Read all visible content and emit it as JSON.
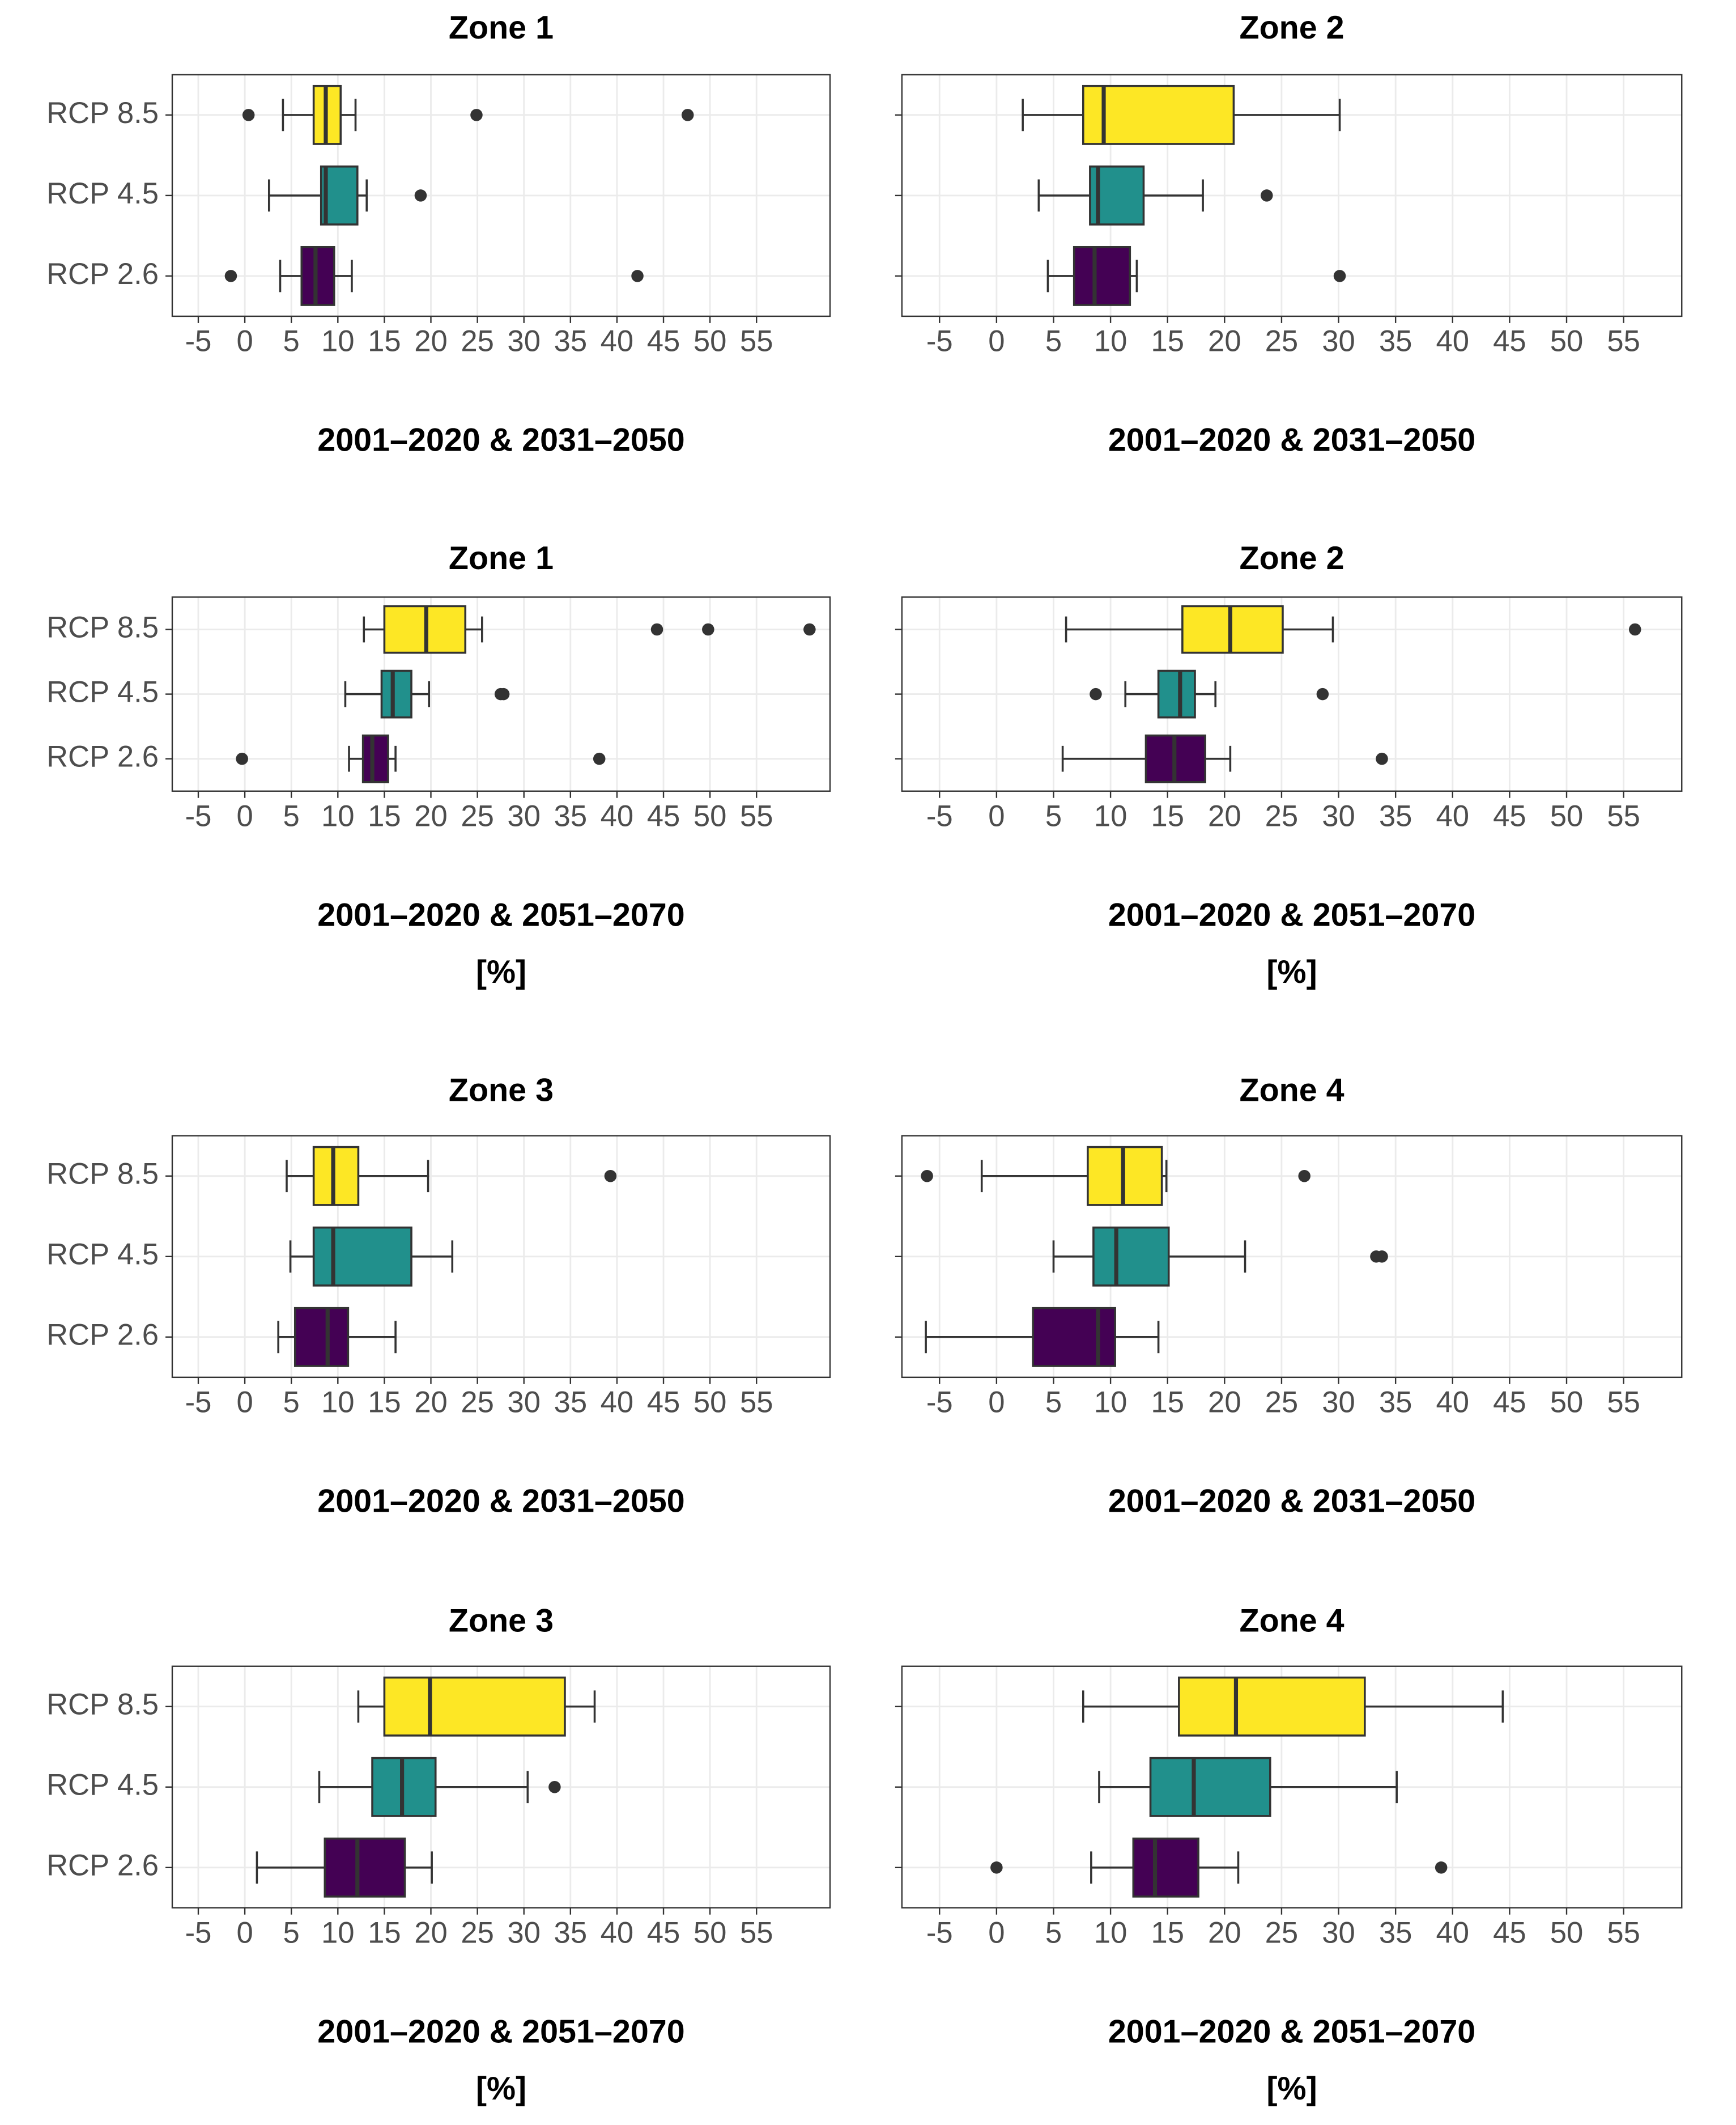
{
  "chart_data": [
    {
      "type": "box",
      "title": "Zone 1",
      "xlabel": [
        "2001–2020 & 2031–2050"
      ],
      "categories": [
        "RCP 8.5",
        "RCP 4.5",
        "RCP 2.6"
      ],
      "xlim": [
        -7.8,
        62.9
      ],
      "xticks": [
        -5,
        0,
        5,
        10,
        15,
        20,
        25,
        30,
        35,
        40,
        45,
        50,
        55
      ],
      "grid": true,
      "boxes": [
        {
          "color": "#fde725",
          "whisker_low": 4.1,
          "q1": 7.4,
          "median": 8.7,
          "q3": 10.3,
          "whisker_high": 11.9,
          "outliers": [
            0.4,
            24.9,
            47.6
          ]
        },
        {
          "color": "#21908c",
          "whisker_low": 2.6,
          "q1": 8.2,
          "median": 8.7,
          "q3": 12.1,
          "whisker_high": 13.1,
          "outliers": [
            18.9
          ]
        },
        {
          "color": "#440154",
          "whisker_low": 3.8,
          "q1": 6.1,
          "median": 7.6,
          "q3": 9.6,
          "whisker_high": 11.5,
          "outliers": [
            -1.5,
            42.2
          ]
        }
      ]
    },
    {
      "type": "box",
      "title": "Zone 2",
      "xlabel": [
        "2001–2020 & 2031–2050"
      ],
      "categories": [
        null,
        null,
        null
      ],
      "xlim": [
        -8.3,
        60.1
      ],
      "xticks": [
        -5,
        0,
        5,
        10,
        15,
        20,
        25,
        30,
        35,
        40,
        45,
        50,
        55
      ],
      "grid": true,
      "boxes": [
        {
          "color": "#fde725",
          "whisker_low": 2.3,
          "q1": 7.6,
          "median": 9.4,
          "q3": 20.8,
          "whisker_high": 30.1,
          "outliers": []
        },
        {
          "color": "#21908c",
          "whisker_low": 3.7,
          "q1": 8.2,
          "median": 8.9,
          "q3": 12.9,
          "whisker_high": 18.1,
          "outliers": [
            23.7
          ]
        },
        {
          "color": "#440154",
          "whisker_low": 4.5,
          "q1": 6.8,
          "median": 8.6,
          "q3": 11.7,
          "whisker_high": 12.3,
          "outliers": [
            30.1
          ]
        }
      ]
    },
    {
      "type": "box",
      "title": "Zone 1",
      "xlabel": [
        "2001–2020 & 2051–2070",
        "[%]"
      ],
      "categories": [
        "RCP 8.5",
        "RCP 4.5",
        "RCP 2.6"
      ],
      "xlim": [
        -7.8,
        62.9
      ],
      "xticks": [
        -5,
        0,
        5,
        10,
        15,
        20,
        25,
        30,
        35,
        40,
        45,
        50,
        55
      ],
      "grid": true,
      "boxes": [
        {
          "color": "#fde725",
          "whisker_low": 12.8,
          "q1": 15.0,
          "median": 19.5,
          "q3": 23.7,
          "whisker_high": 25.5,
          "outliers": [
            44.3,
            49.8,
            60.7
          ]
        },
        {
          "color": "#21908c",
          "whisker_low": 10.8,
          "q1": 14.7,
          "median": 15.9,
          "q3": 17.9,
          "whisker_high": 19.8,
          "outliers": [
            27.5,
            27.8
          ]
        },
        {
          "color": "#440154",
          "whisker_low": 11.2,
          "q1": 12.7,
          "median": 13.7,
          "q3": 15.4,
          "whisker_high": 16.2,
          "outliers": [
            -0.3,
            38.1
          ]
        }
      ]
    },
    {
      "type": "box",
      "title": "Zone 2",
      "xlabel": [
        "2001–2020 & 2051–2070",
        "[%]"
      ],
      "categories": [
        null,
        null,
        null
      ],
      "xlim": [
        -8.3,
        60.1
      ],
      "xticks": [
        -5,
        0,
        5,
        10,
        15,
        20,
        25,
        30,
        35,
        40,
        45,
        50,
        55
      ],
      "grid": true,
      "boxes": [
        {
          "color": "#fde725",
          "whisker_low": 6.1,
          "q1": 16.3,
          "median": 20.5,
          "q3": 25.1,
          "whisker_high": 29.5,
          "outliers": [
            56.0
          ]
        },
        {
          "color": "#21908c",
          "whisker_low": 11.3,
          "q1": 14.2,
          "median": 16.1,
          "q3": 17.4,
          "whisker_high": 19.2,
          "outliers": [
            8.7,
            28.6
          ]
        },
        {
          "color": "#440154",
          "whisker_low": 5.8,
          "q1": 13.1,
          "median": 15.6,
          "q3": 18.3,
          "whisker_high": 20.5,
          "outliers": [
            33.8
          ]
        }
      ]
    },
    {
      "type": "box",
      "title": "Zone 3",
      "xlabel": [
        "2001–2020 & 2031–2050"
      ],
      "categories": [
        "RCP 8.5",
        "RCP 4.5",
        "RCP 2.6"
      ],
      "xlim": [
        -7.8,
        62.9
      ],
      "xticks": [
        -5,
        0,
        5,
        10,
        15,
        20,
        25,
        30,
        35,
        40,
        45,
        50,
        55
      ],
      "grid": true,
      "boxes": [
        {
          "color": "#fde725",
          "whisker_low": 4.5,
          "q1": 7.4,
          "median": 9.5,
          "q3": 12.2,
          "whisker_high": 19.7,
          "outliers": [
            39.3
          ]
        },
        {
          "color": "#21908c",
          "whisker_low": 4.9,
          "q1": 7.4,
          "median": 9.5,
          "q3": 17.9,
          "whisker_high": 22.3,
          "outliers": []
        },
        {
          "color": "#440154",
          "whisker_low": 3.6,
          "q1": 5.4,
          "median": 8.9,
          "q3": 11.1,
          "whisker_high": 16.2,
          "outliers": []
        }
      ]
    },
    {
      "type": "box",
      "title": "Zone 4",
      "xlabel": [
        "2001–2020 & 2031–2050"
      ],
      "categories": [
        null,
        null,
        null
      ],
      "xlim": [
        -8.3,
        60.1
      ],
      "xticks": [
        -5,
        0,
        5,
        10,
        15,
        20,
        25,
        30,
        35,
        40,
        45,
        50,
        55
      ],
      "grid": true,
      "boxes": [
        {
          "color": "#fde725",
          "whisker_low": -1.3,
          "q1": 8.0,
          "median": 11.1,
          "q3": 14.5,
          "whisker_high": 14.9,
          "outliers": [
            -6.1,
            27.0
          ]
        },
        {
          "color": "#21908c",
          "whisker_low": 5.0,
          "q1": 8.5,
          "median": 10.5,
          "q3": 15.1,
          "whisker_high": 21.8,
          "outliers": [
            33.3,
            33.8
          ]
        },
        {
          "color": "#440154",
          "whisker_low": -6.2,
          "q1": 3.2,
          "median": 8.9,
          "q3": 10.4,
          "whisker_high": 14.2,
          "outliers": []
        }
      ]
    },
    {
      "type": "box",
      "title": "Zone 3",
      "xlabel": [
        "2001–2020 & 2051–2070",
        "[%]"
      ],
      "categories": [
        "RCP 8.5",
        "RCP 4.5",
        "RCP 2.6"
      ],
      "xlim": [
        -7.8,
        62.9
      ],
      "xticks": [
        -5,
        0,
        5,
        10,
        15,
        20,
        25,
        30,
        35,
        40,
        45,
        50,
        55
      ],
      "grid": true,
      "boxes": [
        {
          "color": "#fde725",
          "whisker_low": 12.2,
          "q1": 15.0,
          "median": 19.9,
          "q3": 34.4,
          "whisker_high": 37.6,
          "outliers": []
        },
        {
          "color": "#21908c",
          "whisker_low": 8.0,
          "q1": 13.7,
          "median": 16.9,
          "q3": 20.5,
          "whisker_high": 30.4,
          "outliers": [
            33.3
          ]
        },
        {
          "color": "#440154",
          "whisker_low": 1.3,
          "q1": 8.6,
          "median": 12.1,
          "q3": 17.2,
          "whisker_high": 20.1,
          "outliers": []
        }
      ]
    },
    {
      "type": "box",
      "title": "Zone 4",
      "xlabel": [
        "2001–2020 & 2051–2070",
        "[%]"
      ],
      "categories": [
        null,
        null,
        null
      ],
      "xlim": [
        -8.3,
        60.1
      ],
      "xticks": [
        -5,
        0,
        5,
        10,
        15,
        20,
        25,
        30,
        35,
        40,
        45,
        50,
        55
      ],
      "grid": true,
      "boxes": [
        {
          "color": "#fde725",
          "whisker_low": 7.6,
          "q1": 16.0,
          "median": 21.0,
          "q3": 32.3,
          "whisker_high": 44.4,
          "outliers": []
        },
        {
          "color": "#21908c",
          "whisker_low": 9.0,
          "q1": 13.5,
          "median": 17.3,
          "q3": 24.0,
          "whisker_high": 35.1,
          "outliers": []
        },
        {
          "color": "#440154",
          "whisker_low": 8.3,
          "q1": 12.0,
          "median": 13.9,
          "q3": 17.7,
          "whisker_high": 21.2,
          "outliers": [
            0,
            39.0
          ]
        }
      ]
    }
  ]
}
